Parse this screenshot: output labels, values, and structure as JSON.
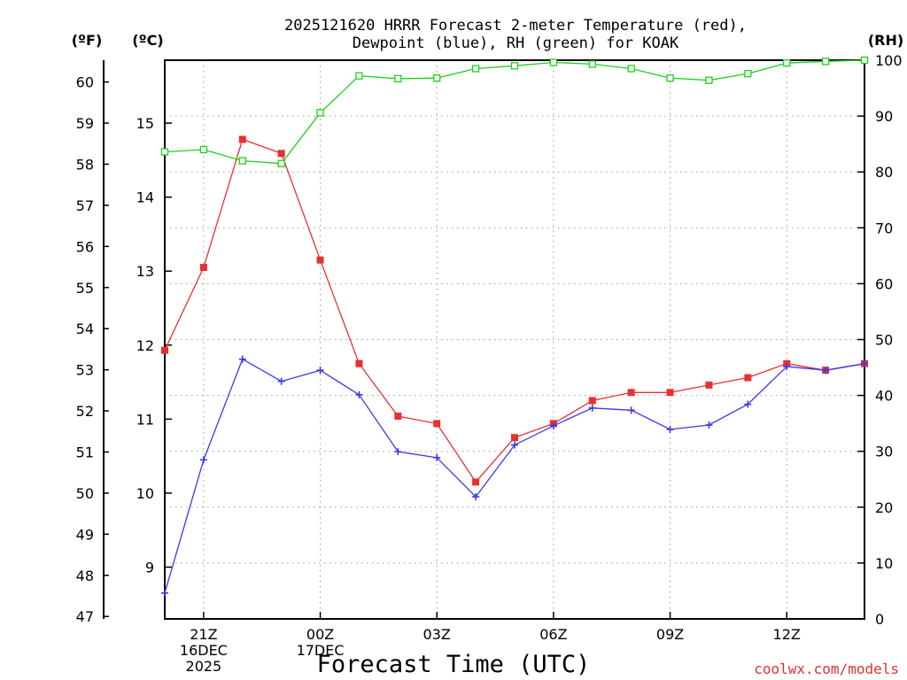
{
  "chart_data": {
    "type": "line",
    "title_lines": [
      "2025121620 HRRR Forecast 2-meter Temperature (red),",
      "Dewpoint (blue), RH (green) for KOAK"
    ],
    "xlabel": "Forecast Time (UTC)",
    "credit": "coolwx.com/models",
    "units": {
      "fahrenheit": "(ºF)",
      "celsius": "(ºC)",
      "rh": "(RH)"
    },
    "x_hours": [
      20,
      21,
      22,
      23,
      24,
      25,
      26,
      27,
      28,
      29,
      30,
      31,
      32,
      33,
      34,
      35,
      36,
      37,
      38
    ],
    "x_tick_labels": [
      {
        "hour": 21,
        "lines": [
          "21Z",
          "16DEC",
          "2025"
        ]
      },
      {
        "hour": 24,
        "lines": [
          "00Z",
          "17DEC"
        ]
      },
      {
        "hour": 27,
        "lines": [
          "03Z"
        ]
      },
      {
        "hour": 30,
        "lines": [
          "06Z"
        ]
      },
      {
        "hour": 33,
        "lines": [
          "09Z"
        ]
      },
      {
        "hour": 36,
        "lines": [
          "12Z"
        ]
      }
    ],
    "axes": {
      "celsius": {
        "range": [
          8.3,
          15.85
        ],
        "ticks": [
          9,
          10,
          11,
          12,
          13,
          14,
          15
        ]
      },
      "fahrenheit": {
        "ticks": [
          47,
          48,
          49,
          50,
          51,
          52,
          53,
          54,
          55,
          56,
          57,
          58,
          59,
          60
        ]
      },
      "rh": {
        "range": [
          0,
          100
        ],
        "ticks": [
          0,
          10,
          20,
          30,
          40,
          50,
          60,
          70,
          80,
          90,
          100
        ]
      }
    },
    "series": [
      {
        "name": "Temperature",
        "unit": "C",
        "color": "#e83030",
        "marker": "filled-square",
        "values": [
          11.93,
          13.05,
          14.78,
          14.59,
          13.15,
          11.75,
          11.04,
          10.94,
          10.15,
          10.75,
          10.94,
          11.25,
          11.36,
          11.36,
          11.46,
          11.56,
          11.75,
          11.66,
          11.75
        ]
      },
      {
        "name": "Dewpoint",
        "unit": "C",
        "color": "#3a3ae8",
        "marker": "plus",
        "values": [
          8.65,
          10.45,
          11.81,
          11.51,
          11.66,
          11.33,
          10.56,
          10.48,
          9.95,
          10.65,
          10.91,
          11.15,
          11.12,
          10.86,
          10.92,
          11.2,
          11.71,
          11.66,
          11.75
        ]
      },
      {
        "name": "RH",
        "unit": "%",
        "color": "#1ed01e",
        "marker": "open-square",
        "values": [
          83.6,
          84.0,
          82.0,
          81.5,
          90.6,
          97.2,
          96.7,
          96.8,
          98.5,
          99.0,
          99.6,
          99.3,
          98.5,
          96.8,
          96.4,
          97.6,
          99.5,
          99.8,
          100
        ]
      }
    ]
  }
}
